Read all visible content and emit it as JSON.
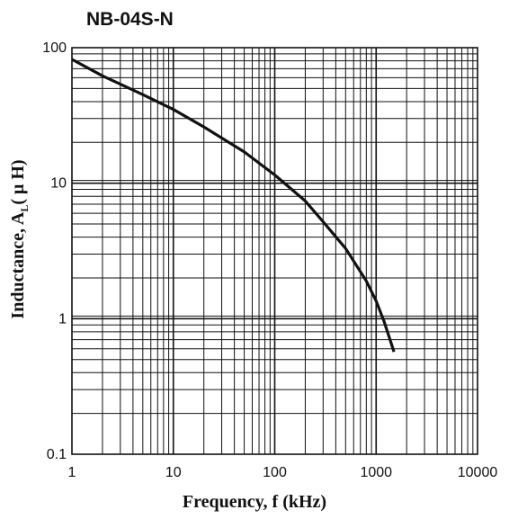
{
  "chart_data": {
    "type": "line",
    "title": "NB-04S-N",
    "xlabel": "Frequency, f (kHz)",
    "ylabel": {
      "main": "Inductance, A",
      "sub": "L",
      "unit": "( μ H)"
    },
    "x_scale": "log",
    "y_scale": "log",
    "xlim": [
      1,
      10000
    ],
    "ylim": [
      0.1,
      100
    ],
    "x_ticks": [
      "1",
      "10",
      "100",
      "1000",
      "10000"
    ],
    "y_ticks": [
      "0.1",
      "1",
      "10",
      "100"
    ],
    "grid": true,
    "series": [
      {
        "x": [
          1,
          2,
          5,
          10,
          20,
          50,
          100,
          200,
          300,
          500,
          800,
          1000,
          1200,
          1500
        ],
        "y": [
          82,
          62,
          45,
          35,
          26,
          17,
          11.5,
          7.4,
          5.2,
          3.3,
          1.9,
          1.35,
          0.95,
          0.57
        ]
      }
    ],
    "colors": {
      "line": "#111111",
      "grid": "#111111",
      "axis": "#111111"
    }
  }
}
